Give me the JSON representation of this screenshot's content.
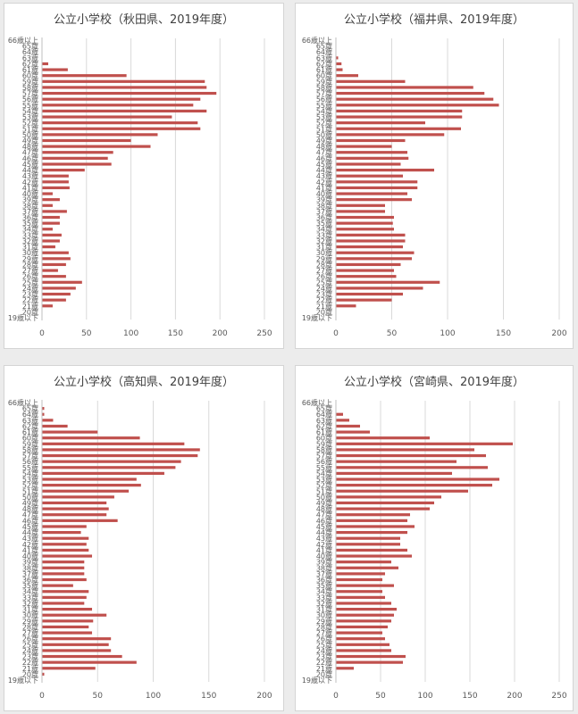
{
  "chart_data": [
    {
      "type": "bar",
      "orientation": "horizontal",
      "title": "公立小学校（秋田県、2019年度）",
      "xlim": [
        0,
        250
      ],
      "xticks": [
        0,
        50,
        100,
        150,
        200,
        250
      ],
      "grid": true,
      "bar_color": "#c0504d",
      "categories": [
        "66歳以上",
        "65歳",
        "64歳",
        "63歳",
        "62歳",
        "61歳",
        "60歳",
        "59歳",
        "58歳",
        "57歳",
        "56歳",
        "55歳",
        "54歳",
        "53歳",
        "52歳",
        "51歳",
        "50歳",
        "49歳",
        "48歳",
        "47歳",
        "46歳",
        "45歳",
        "44歳",
        "43歳",
        "42歳",
        "41歳",
        "40歳",
        "39歳",
        "38歳",
        "37歳",
        "36歳",
        "35歳",
        "34歳",
        "33歳",
        "32歳",
        "31歳",
        "30歳",
        "29歳",
        "28歳",
        "27歳",
        "26歳",
        "25歳",
        "24歳",
        "23歳",
        "22歳",
        "21歳",
        "20歳",
        "19歳以下"
      ],
      "values": [
        0,
        0,
        0,
        0,
        7,
        29,
        95,
        183,
        185,
        196,
        178,
        170,
        185,
        146,
        175,
        178,
        130,
        100,
        122,
        80,
        74,
        78,
        48,
        30,
        30,
        31,
        12,
        20,
        12,
        28,
        20,
        20,
        12,
        22,
        20,
        15,
        30,
        32,
        27,
        18,
        27,
        45,
        38,
        32,
        27,
        12,
        0,
        0
      ]
    },
    {
      "type": "bar",
      "orientation": "horizontal",
      "title": "公立小学校（福井県、2019年度）",
      "xlim": [
        0,
        200
      ],
      "xticks": [
        0,
        50,
        100,
        150,
        200
      ],
      "grid": true,
      "bar_color": "#c0504d",
      "categories": [
        "66歳以上",
        "65歳",
        "64歳",
        "63歳",
        "62歳",
        "61歳",
        "60歳",
        "59歳",
        "58歳",
        "57歳",
        "56歳",
        "55歳",
        "54歳",
        "53歳",
        "52歳",
        "51歳",
        "50歳",
        "49歳",
        "48歳",
        "47歳",
        "46歳",
        "45歳",
        "44歳",
        "43歳",
        "42歳",
        "41歳",
        "40歳",
        "39歳",
        "38歳",
        "37歳",
        "36歳",
        "35歳",
        "34歳",
        "33歳",
        "32歳",
        "31歳",
        "30歳",
        "29歳",
        "28歳",
        "27歳",
        "26歳",
        "25歳",
        "24歳",
        "23歳",
        "22歳",
        "21歳",
        "20歳",
        "19歳以下"
      ],
      "values": [
        0,
        0,
        0,
        2,
        5,
        6,
        20,
        62,
        123,
        133,
        141,
        146,
        113,
        113,
        80,
        112,
        97,
        62,
        50,
        64,
        65,
        58,
        88,
        60,
        73,
        73,
        64,
        68,
        44,
        44,
        52,
        51,
        52,
        62,
        62,
        60,
        70,
        68,
        58,
        52,
        54,
        93,
        78,
        60,
        50,
        18,
        0,
        0
      ]
    },
    {
      "type": "bar",
      "orientation": "horizontal",
      "title": "公立小学校（高知県、2019年度）",
      "xlim": [
        0,
        200
      ],
      "xticks": [
        0,
        50,
        100,
        150,
        200
      ],
      "grid": true,
      "bar_color": "#c0504d",
      "categories": [
        "66歳以上",
        "65歳",
        "64歳",
        "63歳",
        "62歳",
        "61歳",
        "60歳",
        "59歳",
        "58歳",
        "57歳",
        "56歳",
        "55歳",
        "54歳",
        "53歳",
        "52歳",
        "51歳",
        "50歳",
        "49歳",
        "48歳",
        "47歳",
        "46歳",
        "45歳",
        "44歳",
        "43歳",
        "42歳",
        "41歳",
        "40歳",
        "39歳",
        "38歳",
        "37歳",
        "36歳",
        "35歳",
        "34歳",
        "33歳",
        "32歳",
        "31歳",
        "30歳",
        "29歳",
        "28歳",
        "27歳",
        "26歳",
        "25歳",
        "24歳",
        "23歳",
        "22歳",
        "21歳",
        "20歳",
        "19歳以下"
      ],
      "values": [
        0,
        2,
        2,
        10,
        23,
        50,
        88,
        128,
        142,
        140,
        125,
        120,
        110,
        85,
        89,
        78,
        65,
        58,
        60,
        58,
        68,
        40,
        35,
        42,
        40,
        42,
        45,
        38,
        38,
        38,
        40,
        28,
        42,
        40,
        38,
        45,
        58,
        46,
        42,
        45,
        62,
        60,
        62,
        72,
        85,
        48,
        2,
        0
      ]
    },
    {
      "type": "bar",
      "orientation": "horizontal",
      "title": "公立小学校（宮崎県、2019年度）",
      "xlim": [
        0,
        250
      ],
      "xticks": [
        0,
        50,
        100,
        150,
        200,
        250
      ],
      "grid": true,
      "bar_color": "#c0504d",
      "categories": [
        "66歳以上",
        "65歳",
        "64歳",
        "63歳",
        "62歳",
        "61歳",
        "60歳",
        "59歳",
        "58歳",
        "57歳",
        "56歳",
        "55歳",
        "54歳",
        "53歳",
        "52歳",
        "51歳",
        "50歳",
        "49歳",
        "48歳",
        "47歳",
        "46歳",
        "45歳",
        "44歳",
        "43歳",
        "42歳",
        "41歳",
        "40歳",
        "39歳",
        "38歳",
        "37歳",
        "36歳",
        "35歳",
        "34歳",
        "33歳",
        "32歳",
        "31歳",
        "30歳",
        "29歳",
        "28歳",
        "27歳",
        "26歳",
        "25歳",
        "24歳",
        "23歳",
        "22歳",
        "21歳",
        "20歳",
        "19歳以下"
      ],
      "values": [
        0,
        0,
        8,
        15,
        27,
        38,
        105,
        198,
        155,
        168,
        135,
        170,
        130,
        183,
        175,
        148,
        118,
        110,
        105,
        83,
        80,
        88,
        80,
        72,
        72,
        80,
        85,
        62,
        70,
        55,
        52,
        65,
        52,
        55,
        62,
        68,
        65,
        62,
        58,
        52,
        55,
        60,
        62,
        78,
        75,
        20,
        0,
        0
      ]
    }
  ]
}
